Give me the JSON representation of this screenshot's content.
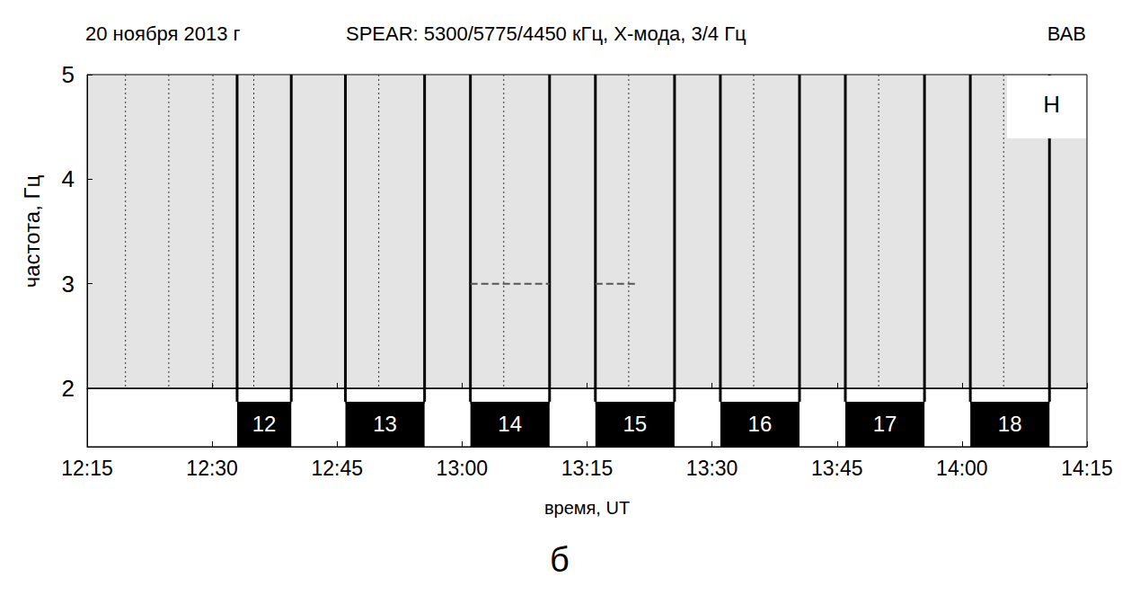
{
  "chart_data": {
    "type": "spectrogram",
    "title": "20 ноября 2013 г",
    "subtitle": "SPEAR: 5300/5775/4450 кГц, Х-мода, 3/4 Гц",
    "annotations": {
      "station": "ВАВ",
      "component": "Н",
      "panel": "б"
    },
    "x_label": "время, UT",
    "y_label": "частота, Гц",
    "xlim": [
      735,
      855
    ],
    "xticks": [
      {
        "value": 735,
        "label": "12:15"
      },
      {
        "value": 750,
        "label": "12:30"
      },
      {
        "value": 765,
        "label": "12:45"
      },
      {
        "value": 780,
        "label": "13:00"
      },
      {
        "value": 795,
        "label": "13:15"
      },
      {
        "value": 810,
        "label": "13:30"
      },
      {
        "value": 825,
        "label": "13:45"
      },
      {
        "value": 840,
        "label": "14:00"
      },
      {
        "value": 855,
        "label": "14:15"
      }
    ],
    "ylim": [
      2,
      5
    ],
    "yticks": [
      2,
      3,
      4,
      5
    ],
    "heating": [
      {
        "label": "12",
        "start": 753,
        "end": 759.5
      },
      {
        "label": "13",
        "start": 766,
        "end": 775.5
      },
      {
        "label": "14",
        "start": 781,
        "end": 790.5
      },
      {
        "label": "15",
        "start": 796,
        "end": 805.5
      },
      {
        "label": "16",
        "start": 811,
        "end": 820.5
      },
      {
        "label": "17",
        "start": 826,
        "end": 835.5
      },
      {
        "label": "18",
        "start": 841,
        "end": 850.5
      }
    ],
    "dotted_lines": [
      739.6,
      744.8,
      750.1,
      755,
      770,
      785,
      800,
      815,
      830,
      845
    ],
    "spectral_line": {
      "frequency": 3,
      "intervals": [
        [
          781,
          790.5
        ],
        [
          796,
          801
        ]
      ]
    }
  }
}
